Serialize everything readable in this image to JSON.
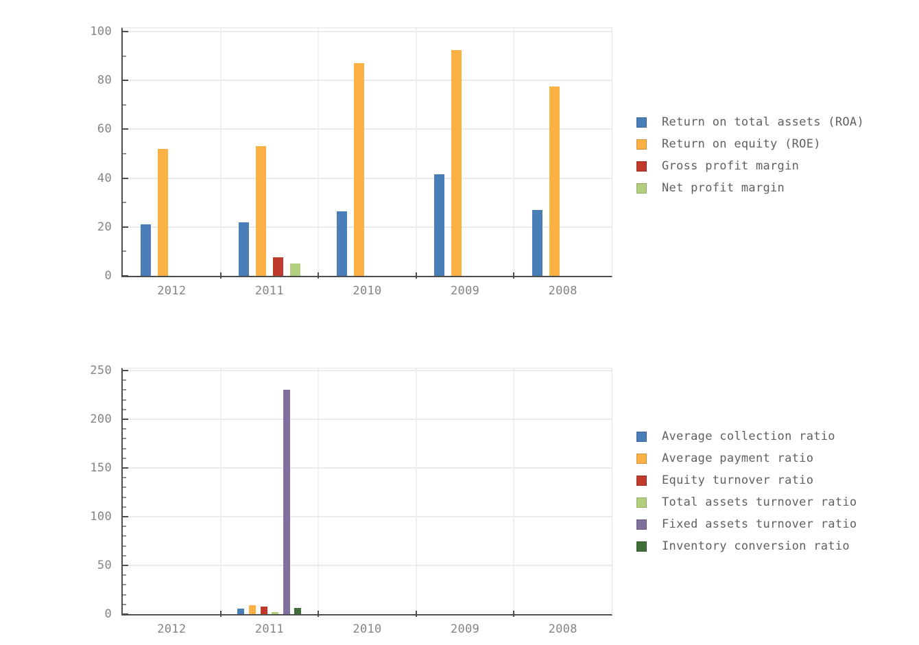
{
  "page": {
    "background": "#ffffff"
  },
  "chart_data": [
    {
      "type": "bar",
      "title": "",
      "xlabel": "",
      "ylabel": "",
      "categories": [
        "2012",
        "2011",
        "2010",
        "2009",
        "2008"
      ],
      "series": [
        {
          "name": "Return on total assets (ROA)",
          "color": "#4a7eb8",
          "values": [
            21,
            22,
            26.5,
            41.5,
            27
          ]
        },
        {
          "name": "Return on equity (ROE)",
          "color": "#fbb144",
          "values": [
            52,
            53,
            87,
            92.5,
            77.5
          ]
        },
        {
          "name": "Gross profit margin",
          "color": "#c0392b",
          "values": [
            0,
            7.5,
            0,
            0,
            0
          ]
        },
        {
          "name": "Net profit margin",
          "color": "#b2cf7e",
          "values": [
            0,
            5,
            0,
            0,
            0
          ]
        }
      ],
      "ylim": [
        0,
        100
      ],
      "yticks": [
        0,
        20,
        40,
        60,
        80,
        100
      ],
      "minor_tick_step": 10,
      "grid": true,
      "legend_position": "right"
    },
    {
      "type": "bar",
      "title": "",
      "xlabel": "",
      "ylabel": "",
      "categories": [
        "2012",
        "2011",
        "2010",
        "2009",
        "2008"
      ],
      "series": [
        {
          "name": "Average collection ratio",
          "color": "#4a7eb8",
          "values": [
            0,
            5.5,
            0,
            0,
            0
          ]
        },
        {
          "name": "Average payment ratio",
          "color": "#fbb144",
          "values": [
            0,
            9,
            0,
            0,
            0
          ]
        },
        {
          "name": "Equity turnover ratio",
          "color": "#c0392b",
          "values": [
            0,
            8,
            0,
            0,
            0
          ]
        },
        {
          "name": "Total assets turnover ratio",
          "color": "#b2cf7e",
          "values": [
            0,
            2,
            0,
            0,
            0
          ]
        },
        {
          "name": "Fixed assets turnover ratio",
          "color": "#80709d",
          "values": [
            0,
            230,
            0,
            0,
            0
          ]
        },
        {
          "name": "Inventory conversion ratio",
          "color": "#3f6e3a",
          "values": [
            0,
            6.5,
            0,
            0,
            0
          ]
        }
      ],
      "ylim": [
        0,
        250
      ],
      "yticks": [
        0,
        50,
        100,
        150,
        200,
        250
      ],
      "minor_tick_step": 10,
      "grid": true,
      "legend_position": "right"
    }
  ]
}
